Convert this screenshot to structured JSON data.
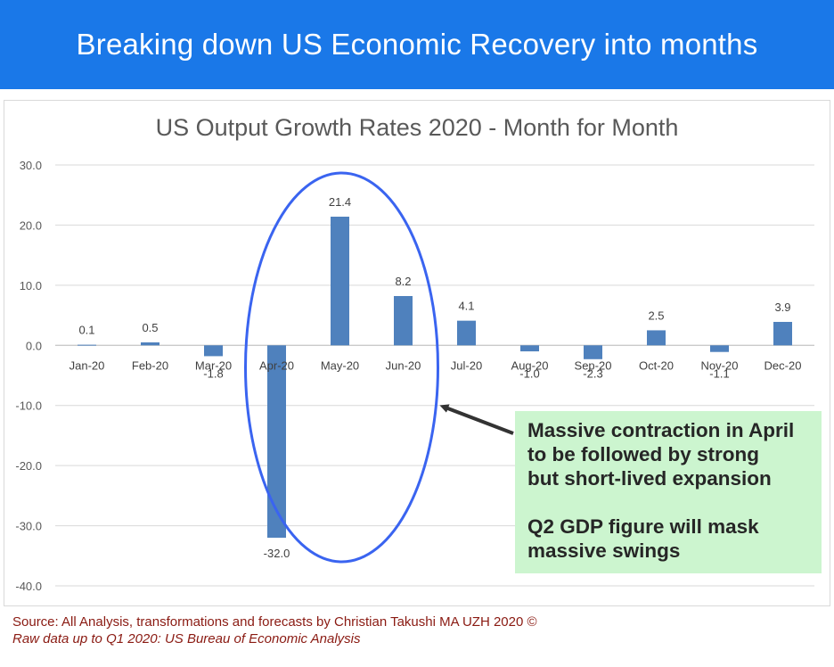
{
  "banner": {
    "title": "Breaking down US Economic Recovery into months"
  },
  "chart_data": {
    "type": "bar",
    "title": "US Output Growth Rates 2020 - Month for Month",
    "categories": [
      "Jan-20",
      "Feb-20",
      "Mar-20",
      "Apr-20",
      "May-20",
      "Jun-20",
      "Jul-20",
      "Aug-20",
      "Sep-20",
      "Oct-20",
      "Nov-20",
      "Dec-20"
    ],
    "values": [
      0.1,
      0.5,
      -1.8,
      -32.0,
      21.4,
      8.2,
      4.1,
      -1.0,
      -2.3,
      2.5,
      -1.1,
      3.9
    ],
    "data_labels": [
      "0.1",
      "0.5",
      "-1.8",
      "-32.0",
      "21.4",
      "8.2",
      "4.1",
      "-1.0",
      "-2.3",
      "2.5",
      "-1.1",
      "3.9"
    ],
    "yticks": [
      "30.0",
      "20.0",
      "10.0",
      "0.0",
      "-10.0",
      "-20.0",
      "-30.0",
      "-40.0"
    ],
    "ylim": [
      -40,
      30
    ],
    "xlabel": "",
    "ylabel": "",
    "grid": true,
    "legend": "none",
    "bar_color": "#4f81bd",
    "highlight_color": "#3a64f0",
    "highlight": "ellipse around Apr-20, May-20 and Jun-20"
  },
  "callout": {
    "line1": "Massive contraction in April",
    "line2": "to be followed by strong",
    "line3": "but short-lived expansion",
    "line4": "Q2 GDP figure will mask",
    "line5": "massive swings",
    "background": "#ccf5cf"
  },
  "source": {
    "line1": "Source: All Analysis, transformations and forecasts by Christian Takushi MA UZH 2020 ©",
    "line2": "Raw data up to Q1 2020: US Bureau of Economic Analysis"
  },
  "colors": {
    "banner": "#1a78e8",
    "source_text": "#8a1a12"
  }
}
